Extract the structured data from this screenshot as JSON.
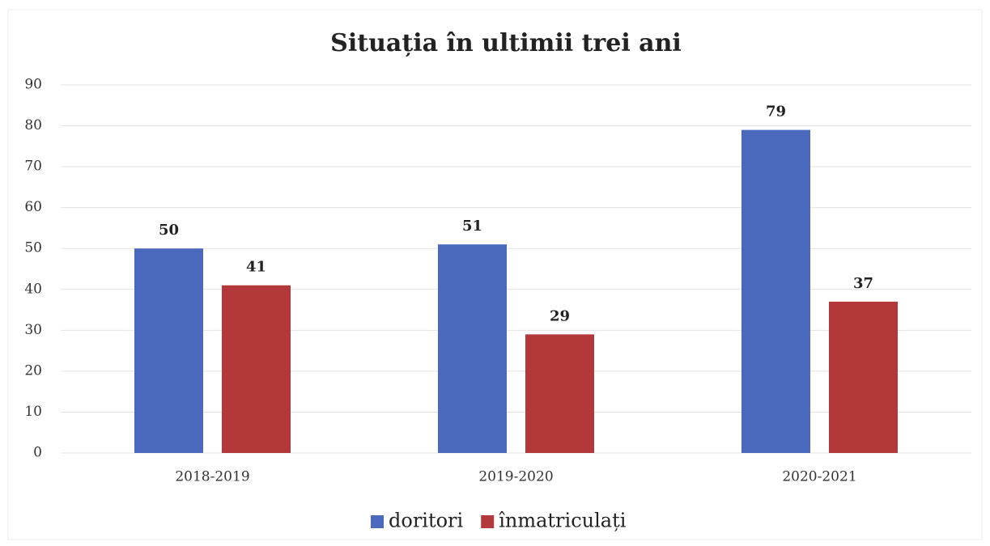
{
  "chart_data": {
    "type": "bar",
    "title": "Situația în ultimii trei ani",
    "categories": [
      "2018-2019",
      "2019-2020",
      "2020-2021"
    ],
    "series": [
      {
        "name": "doritori",
        "color": "#4a69bd",
        "values": [
          50,
          51,
          79
        ]
      },
      {
        "name": "înmatriculați",
        "color": "#b2383a",
        "values": [
          41,
          29,
          37
        ]
      }
    ],
    "ylim": [
      0,
      90
    ],
    "yticks": [
      0,
      10,
      20,
      30,
      40,
      50,
      60,
      70,
      80,
      90
    ],
    "grid": true,
    "legend": "bottom"
  }
}
